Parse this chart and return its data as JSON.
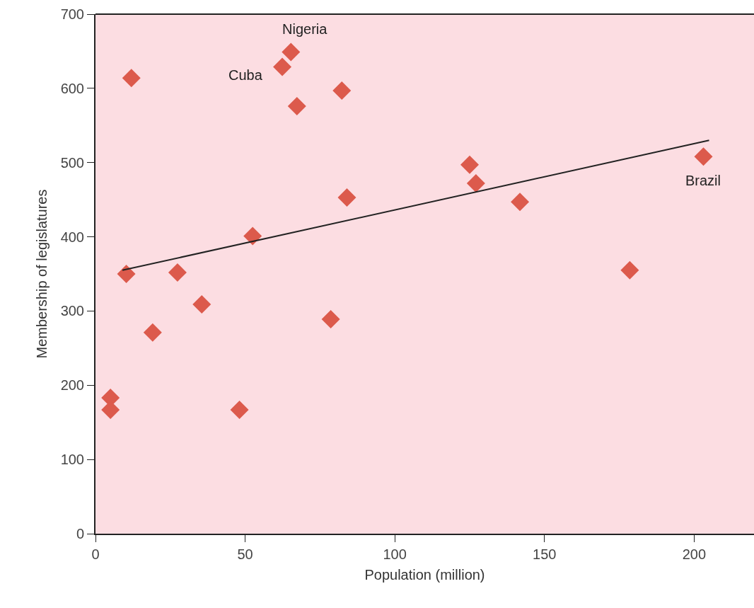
{
  "chart_data": {
    "type": "scatter",
    "xlabel": "Population (million)",
    "ylabel": "Membership of legislatures",
    "xlim": [
      0,
      220
    ],
    "xticks": [
      0,
      50,
      100,
      150,
      200
    ],
    "ylim": [
      0,
      700
    ],
    "yticks": [
      0,
      100,
      200,
      300,
      400,
      500,
      600,
      700
    ],
    "grid": false,
    "marker": "diamond",
    "series": [
      {
        "color": "#dc5a4c",
        "x": [
          12,
          65.3,
          62.4,
          82.3,
          67.3,
          84,
          52.5,
          10.3,
          27.4,
          35.5,
          19.1,
          78.6,
          5,
          5,
          48.1,
          125,
          127.1,
          141.8,
          178.5,
          203.1
        ],
        "values": [
          614,
          649,
          629,
          597,
          576,
          453,
          401,
          350,
          352,
          309,
          271,
          289,
          183,
          167,
          167,
          497,
          472,
          447,
          355,
          508
        ]
      },
      {
        "type": "line",
        "color": "#222222",
        "line_style": "solid",
        "marker": "none",
        "x": [
          9,
          205
        ],
        "values": [
          355,
          530
        ]
      }
    ],
    "annotations": [
      {
        "text": "Nigeria",
        "x": 65.3,
        "y": 649
      },
      {
        "text": "Cuba",
        "x": 62.4,
        "y": 629
      },
      {
        "text": "Brazil",
        "x": 203.1,
        "y": 508
      }
    ]
  }
}
